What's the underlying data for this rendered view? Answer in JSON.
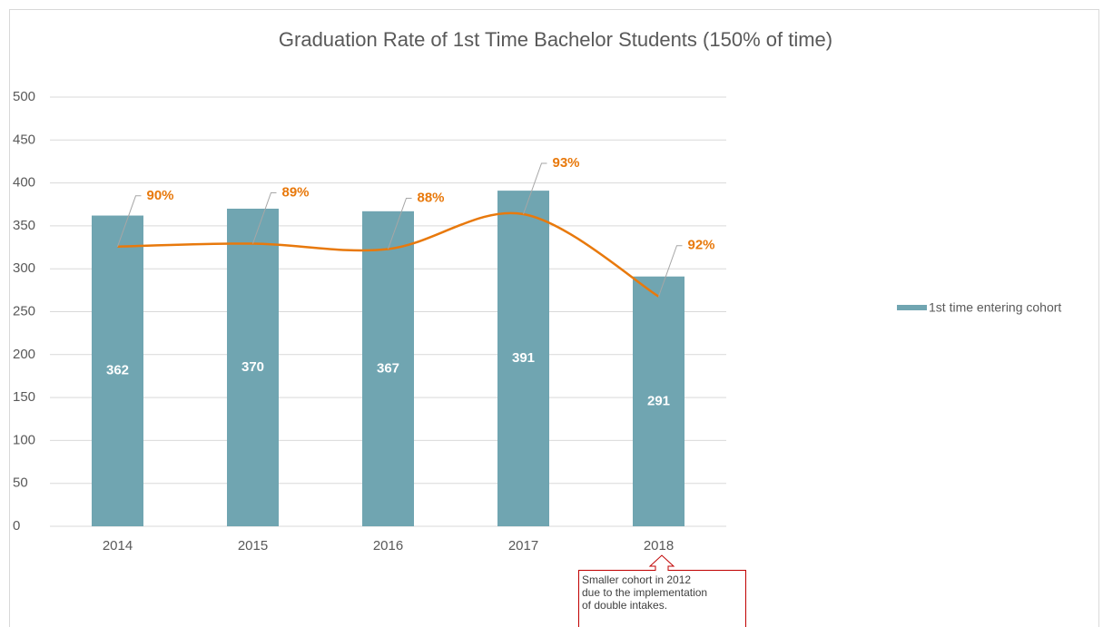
{
  "chart_data": {
    "type": "bar",
    "title": "Graduation Rate of 1st Time Bachelor Students (150% of time)",
    "categories": [
      "2014",
      "2015",
      "2016",
      "2017",
      "2018"
    ],
    "series": [
      {
        "name": "1st time entering cohort",
        "color": "#70a5b1",
        "values": [
          362,
          370,
          367,
          391,
          291
        ]
      },
      {
        "type": "line",
        "color": "#e8790c",
        "values": [
          90,
          89,
          88,
          93,
          92
        ],
        "value_labels": [
          "90%",
          "89%",
          "88%",
          "93%",
          "92%"
        ]
      }
    ],
    "ylim": [
      0,
      500
    ],
    "yticks": [
      0,
      50,
      100,
      150,
      200,
      250,
      300,
      350,
      400,
      450,
      500
    ],
    "grid": true,
    "legend": "right",
    "annotation": [
      "Smaller cohort in 2012",
      "due to the implementation",
      "of double intakes."
    ]
  }
}
